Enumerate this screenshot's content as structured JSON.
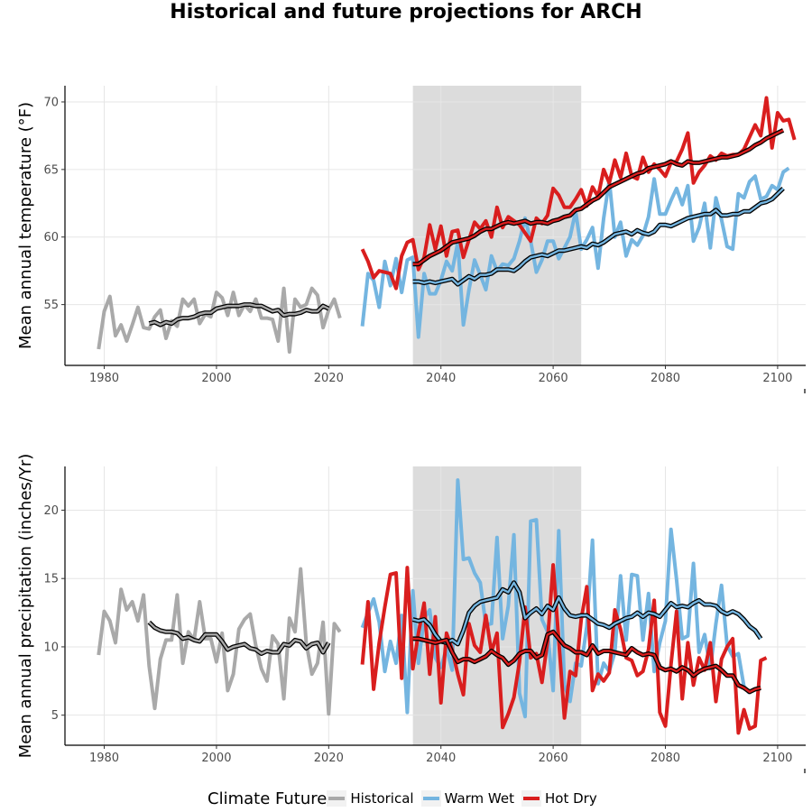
{
  "title": "Historical and future projections for ARCH",
  "legend": {
    "title": "Climate Future",
    "position": "bottom",
    "items": [
      {
        "label": "Historical",
        "color": "#a9a9a9"
      },
      {
        "label": "Warm Wet",
        "color": "#74b5e0"
      },
      {
        "label": "Hot Dry",
        "color": "#d91e1e"
      }
    ]
  },
  "chart_data": [
    {
      "type": "line",
      "ylabel": "Mean annual temperature (°F)",
      "xlabel": "",
      "xlim": [
        1973,
        2105
      ],
      "ylim": [
        50.5,
        71.2
      ],
      "x_ticks": [
        1980,
        2000,
        2020,
        2040,
        2060,
        2080,
        2100
      ],
      "y_ticks": [
        55,
        60,
        65,
        70
      ],
      "grid": true,
      "shaded_period": [
        2035,
        2065
      ],
      "series": [
        {
          "name": "Historical",
          "color": "#a9a9a9",
          "smooth": false,
          "start": 1979,
          "values": [
            51.7,
            54.5,
            55.6,
            52.7,
            53.5,
            52.3,
            53.5,
            54.8,
            53.3,
            53.2,
            54.1,
            54.6,
            52.5,
            53.8,
            53.4,
            55.4,
            54.9,
            55.4,
            53.6,
            54.3,
            54.1,
            55.9,
            55.5,
            54.2,
            55.9,
            54.2,
            55.0,
            54.5,
            55.4,
            54.0,
            54.0,
            53.9,
            52.3,
            56.2,
            51.5,
            55.4,
            54.8,
            55.0,
            56.2,
            55.7,
            53.3,
            54.6,
            55.4,
            54.0
          ]
        },
        {
          "name": "Historical 10-yr average",
          "color": "#a9a9a9",
          "smooth": true,
          "start": 1988,
          "values": [
            53.6,
            53.7,
            53.5,
            53.7,
            53.6,
            53.9,
            54.0,
            54.0,
            54.1,
            54.3,
            54.4,
            54.4,
            54.7,
            54.8,
            54.9,
            54.9,
            54.9,
            55.0,
            55.0,
            54.9,
            54.9,
            54.7,
            54.5,
            54.6,
            54.2,
            54.3,
            54.3,
            54.4,
            54.6,
            54.5,
            54.5,
            54.9,
            54.7
          ]
        },
        {
          "name": "Warm Wet",
          "color": "#74b5e0",
          "smooth": false,
          "start": 2026,
          "values": [
            53.4,
            57.3,
            56.8,
            54.8,
            58.2,
            56.4,
            58.4,
            55.9,
            58.3,
            58.5,
            52.6,
            57.3,
            55.8,
            55.8,
            56.8,
            58.2,
            57.5,
            59.6,
            53.5,
            56.1,
            58.3,
            57.2,
            56.1,
            58.6,
            57.5,
            58.0,
            57.9,
            58.4,
            59.7,
            61.4,
            59.7,
            57.4,
            58.3,
            59.7,
            59.7,
            58.4,
            59.2,
            60.0,
            61.9,
            59.1,
            59.8,
            60.7,
            57.7,
            61.4,
            64.2,
            60.0,
            61.1,
            58.6,
            59.8,
            59.4,
            60.1,
            61.5,
            64.3,
            61.7,
            61.7,
            62.7,
            63.6,
            62.4,
            63.8,
            59.7,
            60.7,
            62.5,
            59.2,
            62.9,
            61.3,
            59.3,
            59.1,
            63.2,
            62.9,
            64.1,
            64.5,
            62.8,
            63.0,
            63.8,
            63.5,
            64.8,
            65.1
          ]
        },
        {
          "name": "Hot Dry",
          "color": "#d91e1e",
          "smooth": false,
          "start": 2026,
          "values": [
            59.1,
            58.2,
            57.0,
            57.5,
            57.4,
            57.3,
            56.2,
            58.6,
            59.6,
            59.8,
            57.6,
            58.5,
            60.9,
            59.1,
            60.8,
            58.6,
            60.4,
            60.5,
            58.5,
            59.8,
            61.1,
            60.6,
            61.2,
            60.0,
            62.2,
            60.7,
            61.5,
            61.2,
            60.9,
            60.3,
            59.7,
            61.4,
            61.0,
            61.6,
            63.6,
            63.1,
            62.2,
            62.2,
            62.8,
            63.5,
            62.3,
            63.7,
            63.0,
            65.0,
            64.0,
            65.7,
            64.4,
            66.2,
            64.5,
            64.3,
            65.9,
            64.8,
            65.4,
            65.0,
            64.5,
            65.5,
            65.6,
            66.5,
            67.7,
            64.0,
            64.8,
            65.3,
            66.0,
            65.7,
            66.2,
            66.0,
            66.1,
            66.1,
            66.5,
            67.4,
            68.3,
            67.5,
            70.3,
            66.6,
            69.2,
            68.6,
            68.7,
            67.2
          ]
        },
        {
          "name": "Warm Wet 10-yr average",
          "color": "#74b5e0",
          "smooth": true,
          "start": 2035,
          "values": [
            56.7,
            56.7,
            56.6,
            56.7,
            56.6,
            56.7,
            56.8,
            56.9,
            56.5,
            56.8,
            57.1,
            56.9,
            57.2,
            57.2,
            57.3,
            57.6,
            57.6,
            57.6,
            57.5,
            57.8,
            58.2,
            58.5,
            58.6,
            58.7,
            58.6,
            58.8,
            59.0,
            59.0,
            59.1,
            59.2,
            59.3,
            59.2,
            59.5,
            59.4,
            59.6,
            59.9,
            60.2,
            60.3,
            60.4,
            60.2,
            60.5,
            60.3,
            60.2,
            60.4,
            60.9,
            60.9,
            60.8,
            61.0,
            61.2,
            61.4,
            61.5,
            61.6,
            61.7,
            61.7,
            62.0,
            61.6,
            61.6,
            61.7,
            61.7,
            61.9,
            61.9,
            62.2,
            62.5,
            62.6,
            62.8,
            63.2,
            63.6
          ]
        },
        {
          "name": "Hot Dry 10-yr average",
          "color": "#d91e1e",
          "smooth": true,
          "start": 2035,
          "values": [
            58.0,
            58.0,
            58.3,
            58.6,
            58.8,
            59.0,
            59.3,
            59.6,
            59.7,
            59.8,
            59.9,
            60.1,
            60.4,
            60.6,
            60.6,
            60.8,
            61.0,
            61.1,
            61.0,
            61.1,
            61.2,
            61.0,
            61.1,
            61.1,
            61.0,
            61.2,
            61.3,
            61.5,
            61.6,
            62.0,
            62.1,
            62.4,
            62.7,
            62.9,
            63.3,
            63.7,
            63.9,
            64.1,
            64.3,
            64.5,
            64.7,
            64.8,
            65.1,
            65.2,
            65.3,
            65.4,
            65.6,
            65.4,
            65.3,
            65.6,
            65.5,
            65.5,
            65.6,
            65.7,
            65.8,
            65.9,
            65.9,
            66.0,
            66.1,
            66.3,
            66.5,
            66.8,
            67.0,
            67.3,
            67.5,
            67.7,
            67.9
          ]
        }
      ]
    },
    {
      "type": "line",
      "ylabel": "Mean annual precipitation (inches/Yr)",
      "xlabel": "",
      "xlim": [
        1973,
        2105
      ],
      "ylim": [
        2.8,
        23.2
      ],
      "x_ticks": [
        1980,
        2000,
        2020,
        2040,
        2060,
        2080,
        2100
      ],
      "y_ticks": [
        5,
        10,
        15,
        20
      ],
      "grid": true,
      "shaded_period": [
        2035,
        2065
      ],
      "series": [
        {
          "name": "Historical",
          "color": "#a9a9a9",
          "smooth": false,
          "start": 1979,
          "values": [
            9.4,
            12.6,
            11.9,
            10.3,
            14.2,
            12.7,
            13.3,
            11.9,
            13.8,
            8.6,
            5.5,
            9.1,
            10.5,
            10.5,
            13.8,
            8.8,
            11.1,
            10.5,
            13.3,
            10.6,
            10.6,
            8.9,
            11.0,
            6.8,
            8.0,
            11.3,
            12.0,
            12.4,
            10.1,
            8.4,
            7.5,
            10.8,
            10.2,
            6.2,
            12.1,
            11.1,
            15.7,
            10.3,
            8.0,
            8.8,
            11.8,
            5.1,
            11.7,
            11.1
          ]
        },
        {
          "name": "Historical 10-yr average",
          "color": "#a9a9a9",
          "smooth": true,
          "start": 1988,
          "values": [
            11.8,
            11.4,
            11.2,
            11.1,
            11.1,
            11.0,
            10.6,
            10.7,
            10.5,
            10.4,
            10.9,
            10.9,
            10.9,
            10.4,
            9.8,
            10.0,
            10.1,
            10.2,
            9.9,
            9.8,
            9.5,
            9.7,
            9.6,
            9.6,
            10.2,
            10.1,
            10.5,
            10.4,
            9.9,
            10.2,
            10.3,
            9.6,
            10.3
          ]
        },
        {
          "name": "Warm Wet",
          "color": "#74b5e0",
          "smooth": false,
          "start": 2026,
          "values": [
            11.4,
            12.5,
            13.5,
            11.8,
            8.2,
            10.4,
            8.8,
            12.3,
            5.2,
            14.1,
            8.8,
            12.1,
            12.7,
            9.2,
            8.5,
            9.9,
            8.3,
            22.2,
            16.4,
            16.5,
            15.4,
            14.7,
            11.6,
            11.7,
            18.0,
            10.6,
            13.0,
            18.2,
            6.6,
            4.9,
            19.2,
            19.3,
            12.0,
            11.1,
            6.8,
            18.5,
            7.2,
            6.0,
            8.8,
            8.6,
            11.5,
            17.8,
            7.3,
            8.8,
            8.2,
            9.6,
            15.2,
            10.5,
            15.3,
            15.2,
            10.5,
            13.9,
            8.2,
            10.3,
            11.9,
            18.6,
            14.9,
            10.6,
            10.8,
            16.1,
            9.6,
            10.9,
            8.4,
            11.7,
            14.5,
            10.1,
            9.3,
            9.5,
            7.1,
            6.6
          ]
        },
        {
          "name": "Hot Dry",
          "color": "#d91e1e",
          "smooth": false,
          "start": 2026,
          "values": [
            8.7,
            13.3,
            6.9,
            10.3,
            12.9,
            15.3,
            15.4,
            7.7,
            15.8,
            8.4,
            11.0,
            13.2,
            8.0,
            12.2,
            5.9,
            11.0,
            9.8,
            8.0,
            6.5,
            11.7,
            10.1,
            9.6,
            12.3,
            9.6,
            11.0,
            4.1,
            5.1,
            6.3,
            8.9,
            12.9,
            9.2,
            9.5,
            7.4,
            10.4,
            16.0,
            10.5,
            4.8,
            8.2,
            7.9,
            12.0,
            14.4,
            6.8,
            8.0,
            7.5,
            8.1,
            12.7,
            11.3,
            9.2,
            9.0,
            7.9,
            8.2,
            9.8,
            13.4,
            5.2,
            4.2,
            8.7,
            12.6,
            6.2,
            10.3,
            7.2,
            9.2,
            8.3,
            10.3,
            6.0,
            9.1,
            10.0,
            10.6,
            3.7,
            5.4,
            4.0,
            4.2,
            9.0,
            9.2
          ]
        },
        {
          "name": "Warm Wet 10-yr average",
          "color": "#74b5e0",
          "smooth": true,
          "start": 2035,
          "values": [
            12.0,
            11.9,
            12.0,
            11.6,
            10.9,
            10.4,
            10.3,
            10.5,
            10.2,
            11.2,
            12.5,
            13.0,
            13.3,
            13.4,
            13.5,
            13.6,
            14.2,
            14.0,
            14.7,
            14.0,
            12.1,
            12.5,
            12.8,
            12.4,
            13.0,
            12.7,
            13.6,
            12.8,
            12.3,
            12.2,
            12.3,
            12.3,
            12.0,
            11.7,
            11.6,
            11.4,
            11.7,
            11.9,
            12.1,
            12.2,
            12.5,
            12.2,
            12.5,
            12.4,
            12.2,
            12.7,
            13.2,
            12.9,
            13.0,
            12.9,
            13.2,
            13.4,
            13.1,
            13.1,
            13.0,
            12.6,
            12.4,
            12.6,
            12.4,
            12.0,
            11.5,
            11.2,
            10.6
          ]
        },
        {
          "name": "Hot Dry 10-yr average",
          "color": "#d91e1e",
          "smooth": true,
          "start": 2035,
          "values": [
            10.6,
            10.6,
            10.5,
            10.4,
            10.3,
            10.4,
            10.5,
            9.6,
            8.9,
            9.1,
            9.1,
            8.9,
            9.1,
            9.3,
            9.7,
            9.4,
            9.2,
            8.7,
            9.0,
            9.5,
            9.7,
            9.7,
            9.2,
            9.4,
            10.9,
            11.1,
            10.6,
            10.1,
            9.9,
            9.6,
            9.6,
            9.4,
            10.1,
            9.5,
            9.7,
            9.7,
            9.6,
            9.5,
            9.4,
            9.9,
            9.6,
            9.4,
            9.5,
            9.4,
            8.5,
            8.3,
            8.4,
            8.2,
            8.5,
            8.3,
            7.9,
            8.2,
            8.4,
            8.5,
            8.6,
            8.3,
            7.9,
            7.9,
            7.2,
            7.0,
            6.7,
            6.9,
            7.0
          ]
        }
      ]
    }
  ]
}
